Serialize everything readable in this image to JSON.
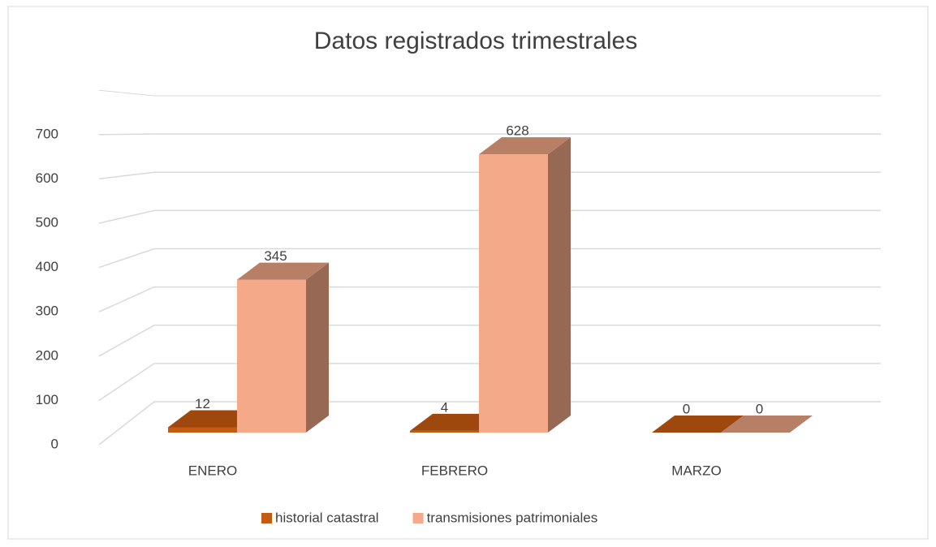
{
  "chart_data": {
    "type": "bar3d",
    "title": "Datos registrados trimestrales",
    "categories": [
      "ENERO",
      "FEBRERO",
      "MARZO"
    ],
    "series": [
      {
        "name": "historial catastral",
        "color": "#c55a11",
        "values": [
          12,
          4,
          0
        ]
      },
      {
        "name": "transmisiones patrimoniales",
        "color": "#f4a988",
        "values": [
          345,
          628,
          0
        ]
      }
    ],
    "ylim": [
      0,
      800
    ],
    "yticks": [
      0,
      100,
      200,
      300,
      400,
      500,
      600,
      700
    ],
    "grid": true,
    "legend": "bottom"
  }
}
